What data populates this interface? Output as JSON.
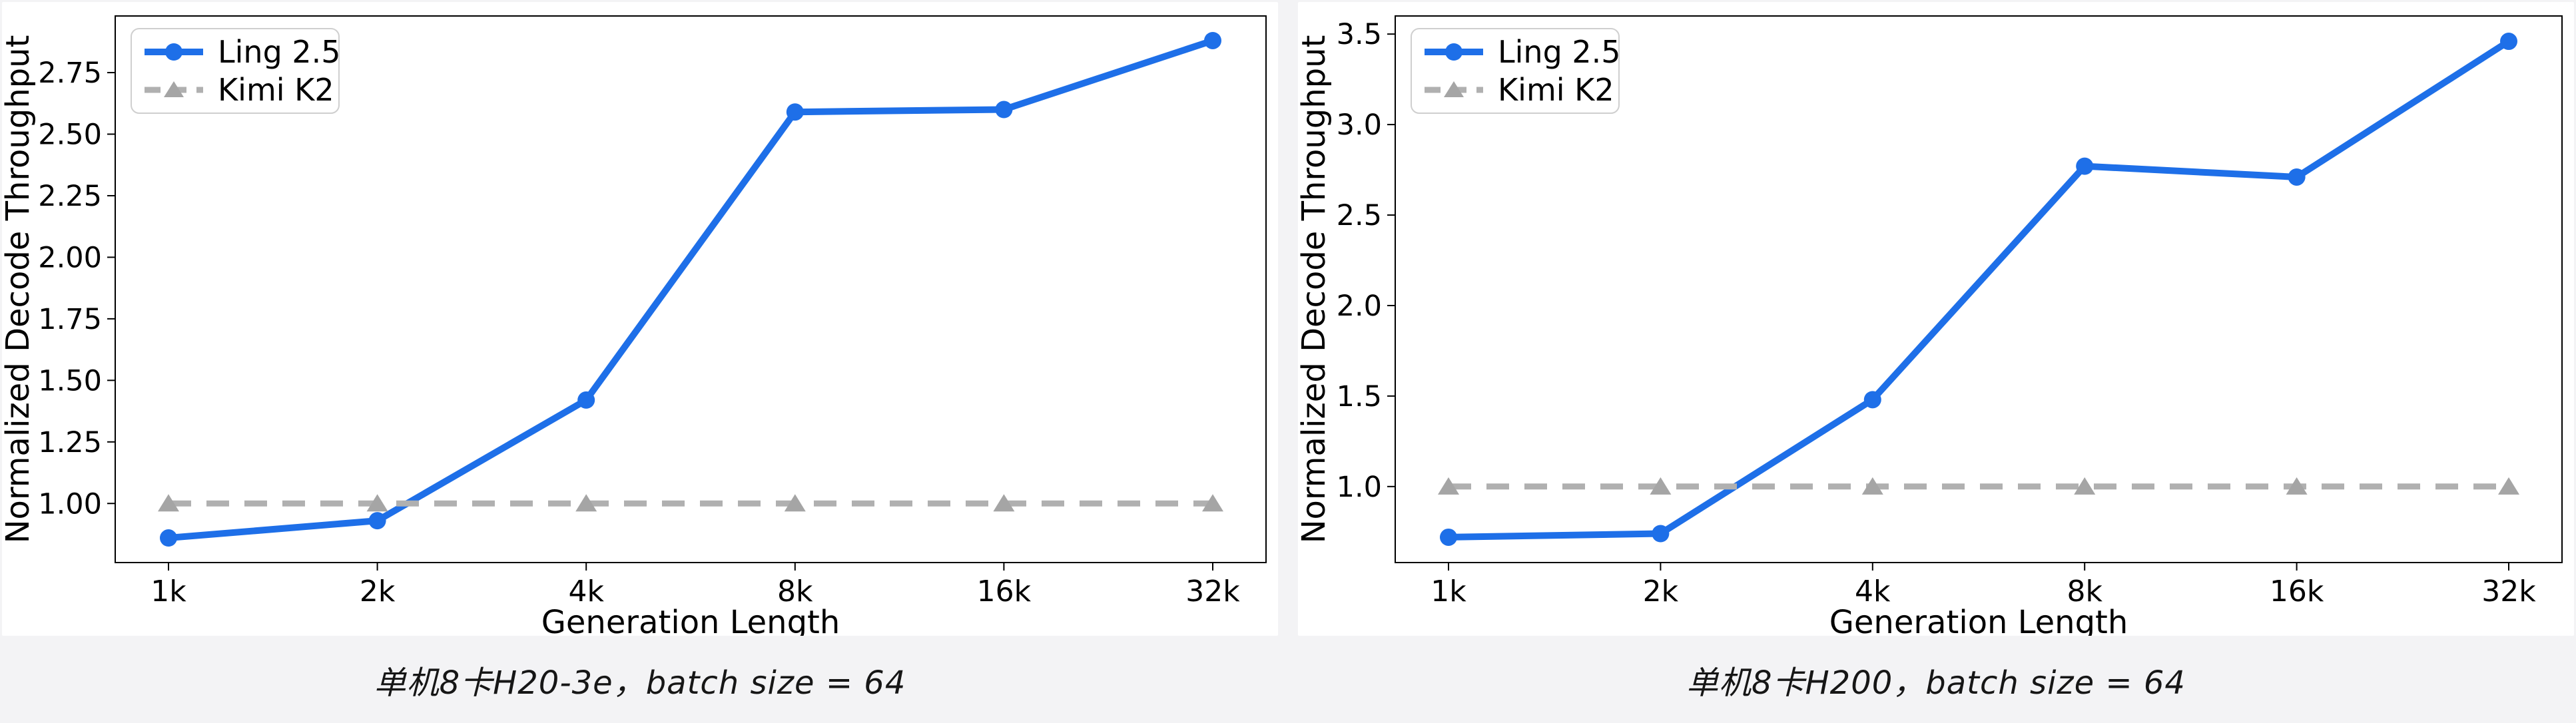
{
  "page": {
    "background_color": "#f3f3f5",
    "card_color": "#ffffff"
  },
  "chart_data": [
    {
      "type": "line",
      "title": "",
      "caption": "单机8卡H20-3e，batch size = 64",
      "xlabel": "Generation Length",
      "ylabel": "Normalized Decode Throughput",
      "categories": [
        "1k",
        "2k",
        "4k",
        "8k",
        "16k",
        "32k"
      ],
      "yticks": [
        "1.00",
        "1.25",
        "1.50",
        "1.75",
        "2.00",
        "2.25",
        "2.50",
        "2.75"
      ],
      "ylim": [
        0.76,
        2.98
      ],
      "x_scale": "log2-equal-spacing",
      "grid": false,
      "legend_position": "upper left",
      "series": [
        {
          "name": "Ling 2.5",
          "color": "#1e6fe8",
          "line_style": "solid",
          "marker": "circle",
          "marker_color": "#1e6fe8",
          "values": [
            0.86,
            0.93,
            1.42,
            2.59,
            2.6,
            2.88
          ]
        },
        {
          "name": "Kimi K2",
          "color": "#b0b0b0",
          "line_style": "dashed",
          "marker": "triangle",
          "marker_color": "#a5a5a5",
          "values": [
            1.0,
            1.0,
            1.0,
            1.0,
            1.0,
            1.0
          ]
        }
      ]
    },
    {
      "type": "line",
      "title": "",
      "caption": "单机8卡H200，batch size = 64",
      "xlabel": "Generation Length",
      "ylabel": "Normalized Decode Throughput",
      "categories": [
        "1k",
        "2k",
        "4k",
        "8k",
        "16k",
        "32k"
      ],
      "yticks": [
        "1.0",
        "1.5",
        "2.0",
        "2.5",
        "3.0",
        "3.5"
      ],
      "ylim": [
        0.58,
        3.6
      ],
      "x_scale": "log2-equal-spacing",
      "grid": false,
      "legend_position": "upper left",
      "series": [
        {
          "name": "Ling 2.5",
          "color": "#1e6fe8",
          "line_style": "solid",
          "marker": "circle",
          "marker_color": "#1e6fe8",
          "values": [
            0.72,
            0.74,
            1.48,
            2.77,
            2.71,
            3.46
          ]
        },
        {
          "name": "Kimi K2",
          "color": "#b0b0b0",
          "line_style": "dashed",
          "marker": "triangle",
          "marker_color": "#a5a5a5",
          "values": [
            1.0,
            1.0,
            1.0,
            1.0,
            1.0,
            1.0
          ]
        }
      ]
    }
  ]
}
